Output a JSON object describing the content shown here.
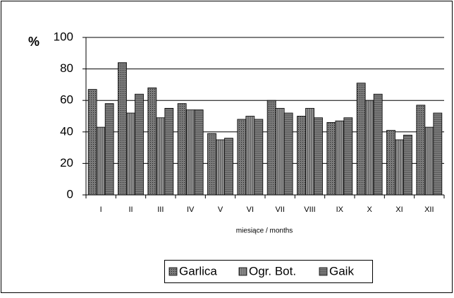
{
  "chart_data": {
    "type": "bar",
    "y_label": "%",
    "x_label": "miesiące / months",
    "categories": [
      "I",
      "II",
      "III",
      "IV",
      "V",
      "VI",
      "VII",
      "VIII",
      "IX",
      "X",
      "XI",
      "XII"
    ],
    "series": [
      {
        "name": "Garlica",
        "color": "#7a7a7a",
        "values": [
          67,
          84,
          68,
          58,
          39,
          48,
          60,
          50,
          46,
          71,
          41,
          57
        ]
      },
      {
        "name": "Ogr. Bot.",
        "color": "#9a9a9a",
        "values": [
          43,
          52,
          49,
          54,
          35,
          50,
          55,
          55,
          47,
          60,
          35,
          43
        ]
      },
      {
        "name": "Gaik",
        "color": "#858585",
        "values": [
          58,
          64,
          55,
          54,
          36,
          48,
          52,
          49,
          49,
          64,
          38,
          52
        ]
      }
    ],
    "ylim": [
      0,
      100
    ],
    "yticks": [
      0,
      20,
      40,
      60,
      80,
      100
    ],
    "grid": true,
    "legend": "bottom"
  }
}
